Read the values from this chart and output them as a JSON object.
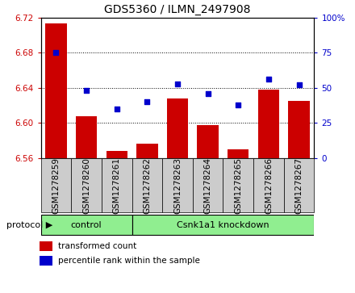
{
  "title": "GDS5360 / ILMN_2497908",
  "samples": [
    "GSM1278259",
    "GSM1278260",
    "GSM1278261",
    "GSM1278262",
    "GSM1278263",
    "GSM1278264",
    "GSM1278265",
    "GSM1278266",
    "GSM1278267"
  ],
  "transformed_count": [
    6.713,
    6.608,
    6.568,
    6.577,
    6.628,
    6.598,
    6.57,
    6.638,
    6.625
  ],
  "percentile_rank": [
    75,
    48,
    35,
    40,
    53,
    46,
    38,
    56,
    52
  ],
  "ylim_left": [
    6.56,
    6.72
  ],
  "ylim_right": [
    0,
    100
  ],
  "yticks_left": [
    6.56,
    6.6,
    6.64,
    6.68,
    6.72
  ],
  "yticks_right": [
    0,
    25,
    50,
    75,
    100
  ],
  "bar_color": "#cc0000",
  "dot_color": "#0000cc",
  "bar_bottom": 6.56,
  "control_label": "control",
  "knockdown_label": "Csnk1a1 knockdown",
  "control_count": 3,
  "protocol_label": "protocol",
  "legend_bar_label": "transformed count",
  "legend_dot_label": "percentile rank within the sample",
  "bg_color": "#ffffff",
  "sample_box_color": "#cccccc",
  "group_color": "#90ee90",
  "title_fontsize": 10,
  "tick_fontsize": 7.5,
  "label_fontsize": 8
}
